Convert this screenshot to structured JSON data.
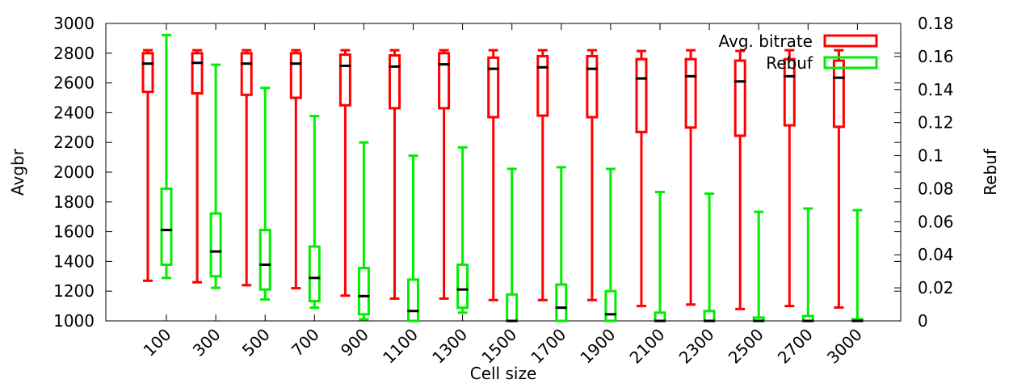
{
  "chart_data": {
    "type": "boxplot",
    "xlabel": "Cell size",
    "ylabel": "Avgbr",
    "y2label": "Rebuf",
    "ylim": [
      1000,
      3000
    ],
    "y2lim": [
      0,
      0.18
    ],
    "yticks": [
      "1000",
      "1200",
      "1400",
      "1600",
      "1800",
      "2000",
      "2200",
      "2400",
      "2600",
      "2800",
      "3000"
    ],
    "y2ticks": [
      "0",
      "0.02",
      "0.04",
      "0.06",
      "0.08",
      "0.1",
      "0.12",
      "0.14",
      "0.16",
      "0.18"
    ],
    "categories": [
      "100",
      "300",
      "500",
      "700",
      "900",
      "1100",
      "1300",
      "1500",
      "1700",
      "1900",
      "2100",
      "2300",
      "2500",
      "2700",
      "3000"
    ],
    "legend_position": "top-right",
    "grid": false,
    "series": [
      {
        "name": "Avg. bitrate",
        "axis": "left",
        "color": "#ff0000",
        "boxes": [
          {
            "min": 1270,
            "q1": 2540,
            "median": 2730,
            "q3": 2800,
            "max": 2820
          },
          {
            "min": 1260,
            "q1": 2530,
            "median": 2735,
            "q3": 2800,
            "max": 2820
          },
          {
            "min": 1240,
            "q1": 2520,
            "median": 2730,
            "q3": 2800,
            "max": 2820
          },
          {
            "min": 1220,
            "q1": 2500,
            "median": 2730,
            "q3": 2800,
            "max": 2820
          },
          {
            "min": 1170,
            "q1": 2450,
            "median": 2715,
            "q3": 2790,
            "max": 2820
          },
          {
            "min": 1150,
            "q1": 2430,
            "median": 2710,
            "q3": 2785,
            "max": 2820
          },
          {
            "min": 1150,
            "q1": 2430,
            "median": 2725,
            "q3": 2800,
            "max": 2820
          },
          {
            "min": 1140,
            "q1": 2370,
            "median": 2695,
            "q3": 2770,
            "max": 2820
          },
          {
            "min": 1140,
            "q1": 2380,
            "median": 2705,
            "q3": 2780,
            "max": 2820
          },
          {
            "min": 1140,
            "q1": 2370,
            "median": 2695,
            "q3": 2780,
            "max": 2820
          },
          {
            "min": 1100,
            "q1": 2270,
            "median": 2630,
            "q3": 2760,
            "max": 2815
          },
          {
            "min": 1110,
            "q1": 2300,
            "median": 2645,
            "q3": 2760,
            "max": 2820
          },
          {
            "min": 1080,
            "q1": 2245,
            "median": 2610,
            "q3": 2750,
            "max": 2815
          },
          {
            "min": 1100,
            "q1": 2315,
            "median": 2645,
            "q3": 2760,
            "max": 2820
          },
          {
            "min": 1090,
            "q1": 2305,
            "median": 2635,
            "q3": 2750,
            "max": 2820
          }
        ]
      },
      {
        "name": "Rebuf",
        "axis": "right",
        "color": "#00ee00",
        "boxes": [
          {
            "min": 0.026,
            "q1": 0.034,
            "median": 0.055,
            "q3": 0.08,
            "max": 0.173
          },
          {
            "min": 0.02,
            "q1": 0.027,
            "median": 0.042,
            "q3": 0.065,
            "max": 0.155
          },
          {
            "min": 0.013,
            "q1": 0.019,
            "median": 0.034,
            "q3": 0.055,
            "max": 0.141
          },
          {
            "min": 0.008,
            "q1": 0.012,
            "median": 0.026,
            "q3": 0.045,
            "max": 0.124
          },
          {
            "min": 0.001,
            "q1": 0.004,
            "median": 0.015,
            "q3": 0.032,
            "max": 0.108
          },
          {
            "min": 0.0,
            "q1": 0.0,
            "median": 0.006,
            "q3": 0.025,
            "max": 0.1
          },
          {
            "min": 0.005,
            "q1": 0.008,
            "median": 0.019,
            "q3": 0.034,
            "max": 0.105
          },
          {
            "min": 0.0,
            "q1": 0.0,
            "median": 0.0,
            "q3": 0.016,
            "max": 0.092
          },
          {
            "min": 0.0,
            "q1": 0.0,
            "median": 0.008,
            "q3": 0.022,
            "max": 0.093
          },
          {
            "min": 0.0,
            "q1": 0.0,
            "median": 0.004,
            "q3": 0.018,
            "max": 0.092
          },
          {
            "min": 0.0,
            "q1": 0.0,
            "median": 0.0,
            "q3": 0.005,
            "max": 0.078
          },
          {
            "min": 0.0,
            "q1": 0.0,
            "median": 0.0,
            "q3": 0.006,
            "max": 0.077
          },
          {
            "min": 0.0,
            "q1": 0.0,
            "median": 0.0,
            "q3": 0.002,
            "max": 0.066
          },
          {
            "min": 0.0,
            "q1": 0.0,
            "median": 0.0,
            "q3": 0.003,
            "max": 0.068
          },
          {
            "min": 0.0,
            "q1": 0.0,
            "median": 0.0,
            "q3": 0.001,
            "max": 0.067
          }
        ]
      }
    ]
  }
}
